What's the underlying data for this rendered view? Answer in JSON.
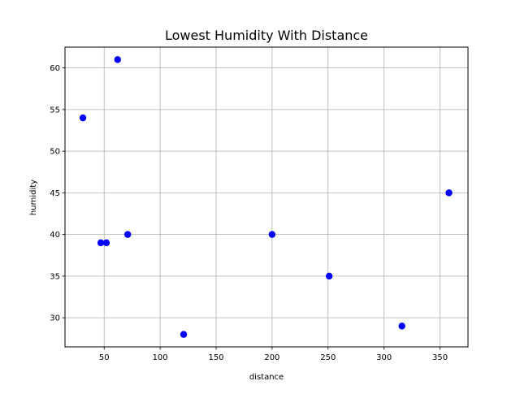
{
  "chart_data": {
    "type": "scatter",
    "title": "Lowest Humidity With Distance",
    "xlabel": "distance",
    "ylabel": "humidity",
    "xlim": [
      15,
      375
    ],
    "ylim": [
      26.5,
      62.5
    ],
    "xticks": [
      50,
      100,
      150,
      200,
      250,
      300,
      350
    ],
    "yticks": [
      30,
      35,
      40,
      45,
      50,
      55,
      60
    ],
    "grid": true,
    "marker_color": "#0000ff",
    "series": [
      {
        "x": [
          31,
          47,
          52,
          62,
          71,
          121,
          200,
          251,
          316,
          358
        ],
        "y": [
          54,
          39,
          39,
          61,
          40,
          28,
          40,
          35,
          29,
          45
        ]
      }
    ]
  }
}
